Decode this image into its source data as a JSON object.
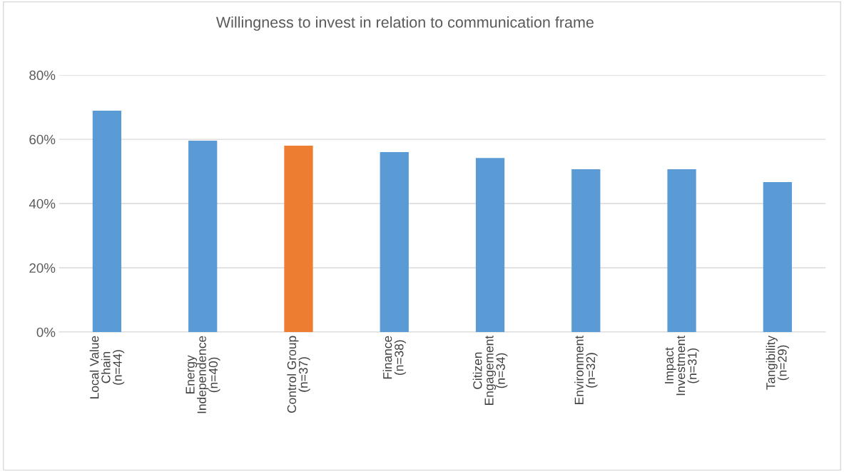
{
  "chart_data": {
    "type": "bar",
    "title": "Willingness to invest in relation to communication frame",
    "categories": [
      "Local Value\nChain\n(n=44)",
      "Energy\nIndependence\n(n=40)",
      "Control Group\n(n=37)",
      "Finance\n(n=38)",
      "Citizen\nEngagement\n(n=34)",
      "Environment\n(n=32)",
      "Impact\nInvestment\n(n=31)",
      "Tangibility\n(n=29)"
    ],
    "values": [
      68.9,
      59.6,
      58.0,
      56.0,
      54.2,
      50.7,
      50.7,
      46.7
    ],
    "colors": [
      "#5b9bd5",
      "#5b9bd5",
      "#ed7d31",
      "#5b9bd5",
      "#5b9bd5",
      "#5b9bd5",
      "#5b9bd5",
      "#5b9bd5"
    ],
    "ylim": [
      0,
      80
    ],
    "yticks": [
      {
        "value": 0,
        "label": "0%"
      },
      {
        "value": 20,
        "label": "20%"
      },
      {
        "value": 40,
        "label": "40%"
      },
      {
        "value": 60,
        "label": "60%"
      },
      {
        "value": 80,
        "label": "80%"
      }
    ],
    "grid": "y",
    "legend": false
  }
}
